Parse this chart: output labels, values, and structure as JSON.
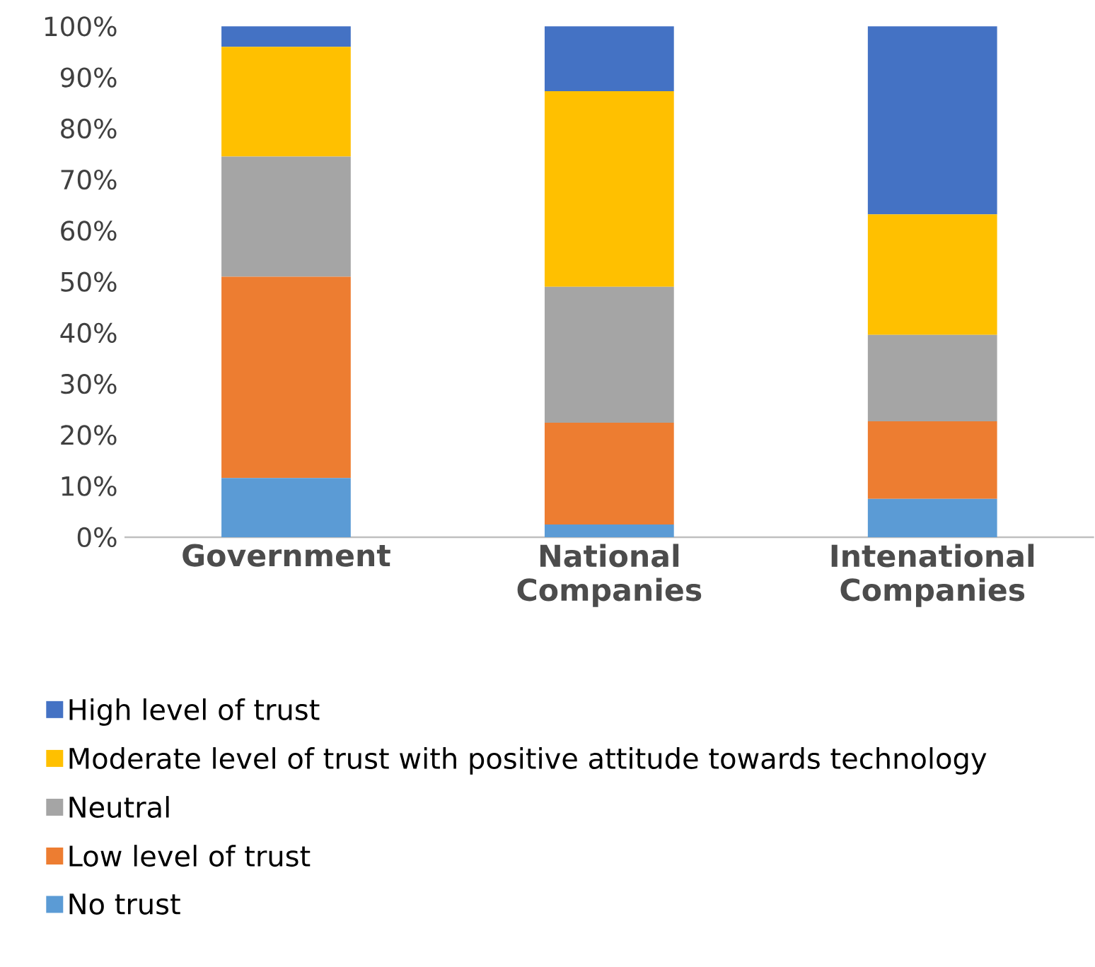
{
  "chart_data": {
    "type": "bar",
    "stacked": true,
    "categories": [
      "Government",
      "National Companies",
      "Intenational Companies"
    ],
    "series": [
      {
        "name": "No trust",
        "color": "#5b9bd5",
        "values": [
          11.6,
          2.5,
          7.5
        ]
      },
      {
        "name": "Low level of trust",
        "color": "#ed7d31",
        "values": [
          39.4,
          19.9,
          15.2
        ]
      },
      {
        "name": "Neutral",
        "color": "#a5a5a5",
        "values": [
          23.5,
          26.6,
          16.9
        ]
      },
      {
        "name": "Moderate level of trust with positive attitude towards technology",
        "color": "#ffc000",
        "values": [
          21.5,
          38.3,
          23.6
        ]
      },
      {
        "name": "High level of trust",
        "color": "#4472c4",
        "values": [
          4.0,
          12.7,
          36.8
        ]
      }
    ],
    "ylim": [
      0,
      100
    ],
    "yticks": [
      {
        "value": 0,
        "label": "0%"
      },
      {
        "value": 10,
        "label": "10%"
      },
      {
        "value": 20,
        "label": "20%"
      },
      {
        "value": 30,
        "label": "30%"
      },
      {
        "value": 40,
        "label": "40%"
      },
      {
        "value": 50,
        "label": "50%"
      },
      {
        "value": 60,
        "label": "60%"
      },
      {
        "value": 70,
        "label": "70%"
      },
      {
        "value": 80,
        "label": "80%"
      },
      {
        "value": 90,
        "label": "90%"
      },
      {
        "value": 100,
        "label": "100%"
      }
    ],
    "grid": false,
    "legend": "bottom"
  }
}
